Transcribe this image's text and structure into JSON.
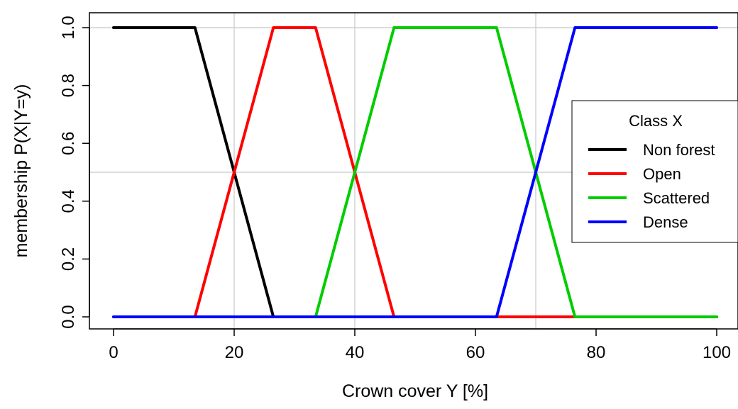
{
  "chart_data": {
    "type": "line",
    "xlabel": "Crown cover Y [%]",
    "ylabel": "membership P(X|Y=y)",
    "xlim": [
      0,
      100
    ],
    "ylim": [
      0,
      1
    ],
    "x_ticks": [
      "0",
      "20",
      "40",
      "60",
      "80",
      "100"
    ],
    "y_ticks": [
      "0.0",
      "0.2",
      "0.4",
      "0.6",
      "0.8",
      "1.0"
    ],
    "grid": {
      "vertical": [
        20,
        40,
        70
      ],
      "horizontal": [
        0.5,
        1.0
      ]
    },
    "legend": {
      "title": "Class X",
      "placement": "right"
    },
    "series": [
      {
        "name": "Non forest",
        "color": "#000000",
        "x": [
          0,
          13.5,
          26.5,
          100
        ],
        "y": [
          1,
          1,
          0,
          0
        ]
      },
      {
        "name": "Open",
        "color": "#ff0000",
        "x": [
          0,
          13.5,
          26.5,
          33.5,
          46.5,
          63.5,
          76.5,
          100
        ],
        "y": [
          0,
          0,
          1,
          1,
          0,
          0,
          0,
          0
        ]
      },
      {
        "name": "Scattered",
        "color": "#00cc00",
        "x": [
          0,
          33.5,
          46.5,
          63.5,
          76.5,
          100
        ],
        "y": [
          0,
          0,
          1,
          1,
          0,
          0
        ]
      },
      {
        "name": "Dense",
        "color": "#0000ff",
        "x": [
          0,
          63.5,
          76.5,
          100
        ],
        "y": [
          0,
          0,
          1,
          1
        ]
      }
    ]
  }
}
